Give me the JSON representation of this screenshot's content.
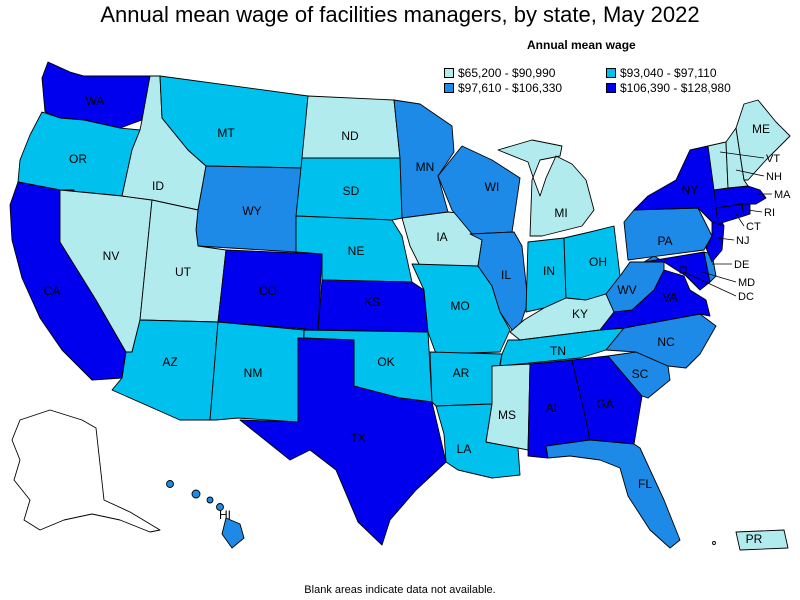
{
  "title": "Annual mean wage of facilities managers, by state, May 2022",
  "legend": {
    "title": "Annual mean wage",
    "bins": [
      {
        "label": "$65,200 - $90,990",
        "color": "#b2ebee"
      },
      {
        "label": "$93,040 - $97,110",
        "color": "#00c0ee"
      },
      {
        "label": "$97,610 - $106,330",
        "color": "#1e8ae8"
      },
      {
        "label": "$106,390 - $128,980",
        "color": "#0000ee"
      }
    ]
  },
  "footnote": "Blank areas indicate data not available.",
  "states": {
    "WA": 3,
    "OR": 1,
    "CA": 3,
    "NV": 0,
    "ID": 0,
    "MT": 1,
    "WY": 2,
    "UT": 0,
    "AZ": 1,
    "CO": 3,
    "NM": 1,
    "ND": 0,
    "SD": 1,
    "NE": 1,
    "KS": 3,
    "OK": 1,
    "TX": 3,
    "MN": 2,
    "IA": 0,
    "MO": 1,
    "AR": 1,
    "LA": 1,
    "WI": 2,
    "IL": 2,
    "MI": 0,
    "IN": 1,
    "OH": 1,
    "KY": 0,
    "TN": 1,
    "MS": 0,
    "AL": 3,
    "GA": 3,
    "FL": 2,
    "SC": 2,
    "NC": 2,
    "VA": 3,
    "WV": 2,
    "PA": 2,
    "NY": 3,
    "ME": 0,
    "NH": 0,
    "VT": 0,
    "MA": 3,
    "RI": 3,
    "CT": 3,
    "NJ": 3,
    "DE": 2,
    "MD": 3,
    "DC": 3,
    "AK": -1,
    "HI": 2,
    "PR": 0
  },
  "labels": {
    "WA": "WA",
    "OR": "OR",
    "CA": "CA",
    "NV": "NV",
    "ID": "ID",
    "MT": "MT",
    "WY": "WY",
    "UT": "UT",
    "AZ": "AZ",
    "CO": "CO",
    "NM": "NM",
    "ND": "ND",
    "SD": "SD",
    "NE": "NE",
    "KS": "KS",
    "OK": "OK",
    "TX": "TX",
    "MN": "MN",
    "IA": "IA",
    "MO": "MO",
    "AR": "AR",
    "LA": "LA",
    "WI": "WI",
    "IL": "IL",
    "MI": "MI",
    "IN": "IN",
    "OH": "OH",
    "KY": "KY",
    "TN": "TN",
    "MS": "MS",
    "AL": "AL",
    "GA": "GA",
    "FL": "FL",
    "SC": "SC",
    "NC": "NC",
    "VA": "VA",
    "WV": "WV",
    "PA": "PA",
    "NY": "NY",
    "ME": "ME",
    "NH": "NH",
    "VT": "VT",
    "MA": "MA",
    "RI": "RI",
    "CT": "CT",
    "NJ": "NJ",
    "DE": "DE",
    "MD": "MD",
    "DC": "DC",
    "HI": "HI",
    "PR": "PR"
  }
}
